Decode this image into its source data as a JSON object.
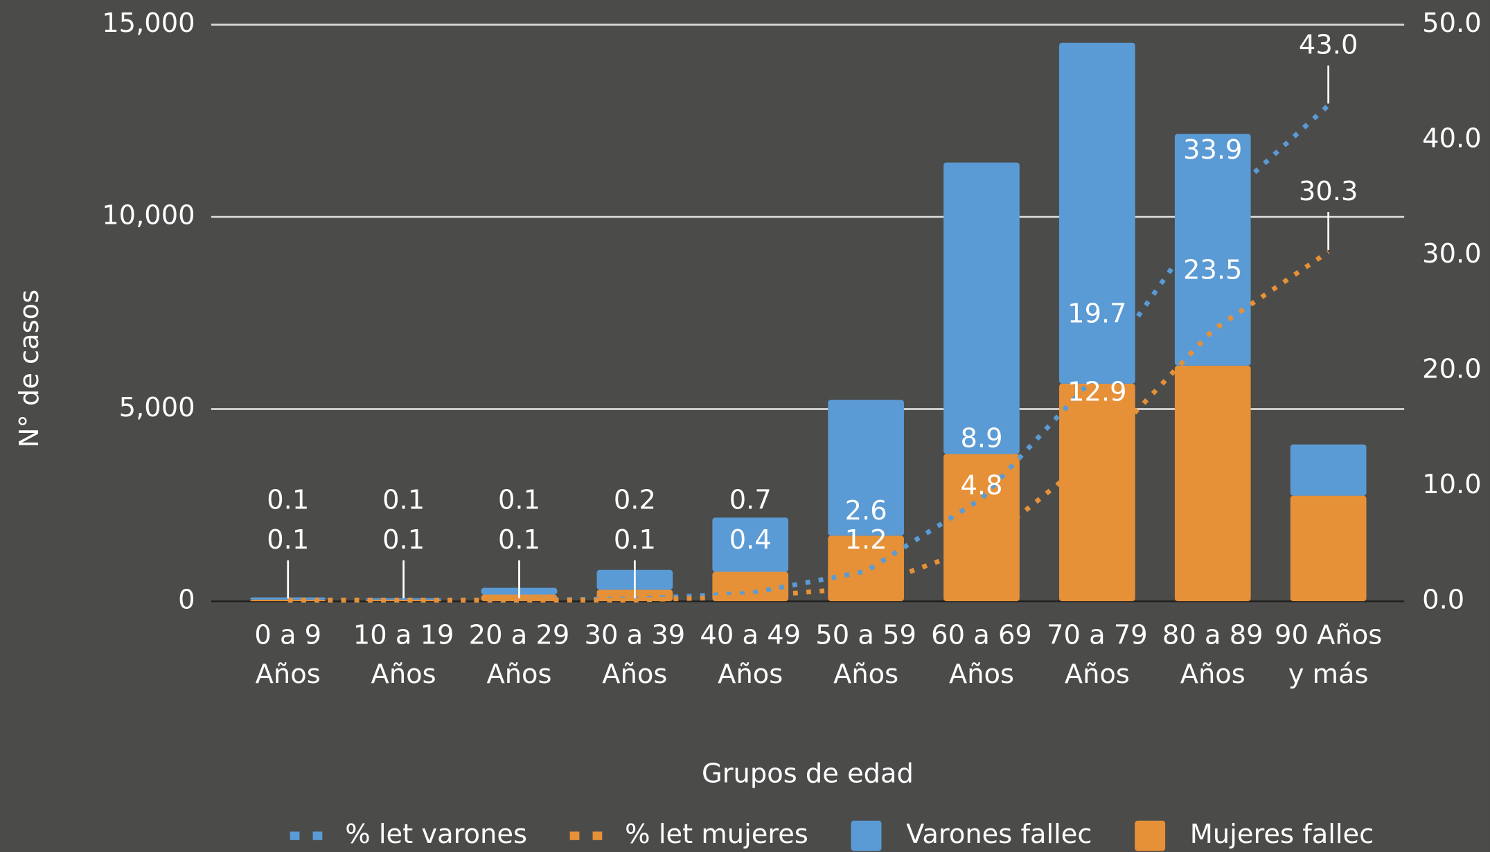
{
  "chart_data": {
    "type": "bar",
    "stacked": true,
    "xlabel": "Grupos de edad",
    "ylabel": "N° de casos",
    "categories": [
      "0 a 9 Años",
      "10 a 19 Años",
      "20 a 29 Años",
      "30 a 39 Años",
      "40 a 49 Años",
      "50 a 59 Años",
      "60 a 69 Años",
      "70 a 79 Años",
      "80 a 89 Años",
      "90 Años y más"
    ],
    "ylim": [
      0,
      15000
    ],
    "yticks": [
      0,
      {
        "value": 5000,
        "label": "5,000"
      },
      {
        "value": 10000,
        "label": "10,000"
      },
      {
        "value": 15000,
        "label": "15,000"
      }
    ],
    "y2lim": [
      0,
      50
    ],
    "y2ticks": [
      {
        "value": 0,
        "label": "0.0"
      },
      {
        "value": 10,
        "label": "10.0"
      },
      {
        "value": 20,
        "label": "20.0"
      },
      {
        "value": 30,
        "label": "30.0"
      },
      {
        "value": 40,
        "label": "40.0"
      },
      {
        "value": 50,
        "label": "50.0"
      }
    ],
    "grid": true,
    "legend": "bottom",
    "series": [
      {
        "name": "% let varones",
        "type": "line",
        "axis": "y2",
        "color": "#5b9bd5",
        "values": [
          0.1,
          0.1,
          0.1,
          0.2,
          0.7,
          2.6,
          8.9,
          19.7,
          33.9,
          43.0
        ],
        "value_labels": [
          "0.1",
          "0.1",
          "0.1",
          "0.2",
          "0.7",
          "2.6",
          "8.9",
          "19.7",
          "33.9",
          "43.0"
        ]
      },
      {
        "name": "% let mujeres",
        "type": "line",
        "axis": "y2",
        "color": "#e69138",
        "values": [
          0.1,
          0.1,
          0.1,
          0.1,
          0.4,
          1.2,
          4.8,
          12.9,
          23.5,
          30.3
        ],
        "value_labels": [
          "0.1",
          "0.1",
          "0.1",
          "0.1",
          "0.4",
          "1.2",
          "4.8",
          "12.9",
          "23.5",
          "30.3"
        ]
      },
      {
        "name": "Varones fallec",
        "type": "bar",
        "color": "#5b9bd5",
        "values": [
          60,
          40,
          180,
          515,
          1410,
          3535,
          7585,
          8870,
          6030,
          1335
        ]
      },
      {
        "name": "Mujeres fallec",
        "type": "bar",
        "color": "#e69138",
        "values": [
          40,
          40,
          170,
          300,
          765,
          1705,
          3830,
          5660,
          6130,
          2745
        ]
      }
    ]
  }
}
